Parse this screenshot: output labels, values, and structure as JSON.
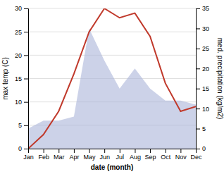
{
  "chart_data": {
    "type": "line",
    "categories": [
      "Jan",
      "Feb",
      "Mar",
      "Apr",
      "May",
      "Jun",
      "Jul",
      "Aug",
      "Sep",
      "Oct",
      "Nov",
      "Dec"
    ],
    "xlabel": "date (month)",
    "ylabel": "max temp (C)",
    "y2label": "med. precipitation (kg/m2)",
    "series": [
      {
        "type": "area",
        "axis": "y2",
        "color": "#aab4d8",
        "values": [
          5,
          7,
          7,
          8,
          30,
          22,
          15,
          20,
          15,
          12,
          12,
          11
        ]
      },
      {
        "type": "line",
        "color": "#c0392b",
        "values": [
          0,
          3,
          8,
          16,
          25,
          30,
          28,
          29,
          24,
          14,
          8,
          9
        ]
      }
    ],
    "ylim": [
      0,
      30
    ],
    "yticks": [
      0,
      5,
      10,
      15,
      20,
      25,
      30
    ],
    "y2lim": [
      0,
      35
    ],
    "y2ticks": [
      0,
      5,
      10,
      15,
      20,
      25,
      30,
      35
    ],
    "grid": true
  }
}
